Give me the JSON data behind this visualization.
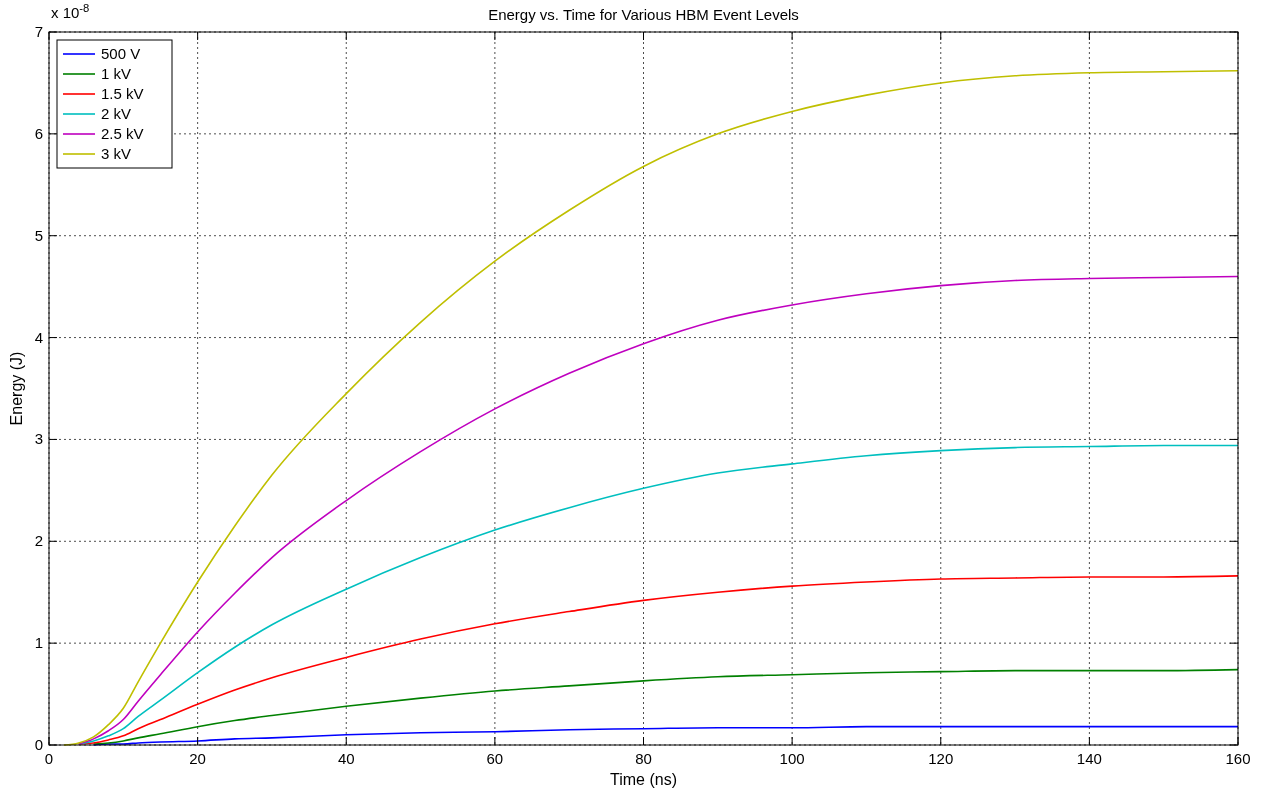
{
  "chart_data": {
    "type": "line",
    "title": "Energy vs. Time for Various HBM Event Levels",
    "xlabel": "Time (ns)",
    "ylabel": "Energy (J)",
    "annotations": [
      "x 10$^{-8}$"
    ],
    "x": [
      2,
      4,
      6,
      8,
      10,
      12,
      15,
      20,
      25,
      30,
      40,
      50,
      60,
      70,
      80,
      90,
      100,
      110,
      120,
      130,
      140,
      150,
      160
    ],
    "series": [
      {
        "name": "500 V",
        "color": "#0000ff",
        "values": [
          null,
          null,
          0.0,
          0.01,
          0.01,
          0.02,
          0.03,
          0.04,
          0.06,
          0.07,
          0.1,
          0.12,
          0.13,
          0.15,
          0.16,
          0.17,
          0.17,
          0.18,
          0.18,
          0.18,
          0.18,
          0.18,
          0.18
        ]
      },
      {
        "name": "1 kV",
        "color": "#008000",
        "values": [
          null,
          null,
          0.01,
          0.02,
          0.04,
          0.07,
          0.11,
          0.18,
          0.24,
          0.29,
          0.38,
          0.46,
          0.53,
          0.58,
          0.63,
          0.67,
          0.69,
          0.71,
          0.72,
          0.73,
          0.73,
          0.73,
          0.74
        ]
      },
      {
        "name": "1.5 kV",
        "color": "#ff0000",
        "values": [
          null,
          0.01,
          0.02,
          0.05,
          0.09,
          0.16,
          0.25,
          0.4,
          0.54,
          0.66,
          0.86,
          1.04,
          1.19,
          1.31,
          1.42,
          1.5,
          1.56,
          1.6,
          1.63,
          1.64,
          1.65,
          1.65,
          1.66
        ]
      },
      {
        "name": "2 kV",
        "color": "#00bfbf",
        "values": [
          null,
          0.01,
          0.04,
          0.09,
          0.16,
          0.28,
          0.44,
          0.71,
          0.96,
          1.18,
          1.53,
          1.84,
          2.11,
          2.33,
          2.52,
          2.67,
          2.76,
          2.84,
          2.89,
          2.92,
          2.93,
          2.94,
          2.94
        ]
      },
      {
        "name": "2.5 kV",
        "color": "#bf00bf",
        "values": [
          null,
          0.01,
          0.06,
          0.14,
          0.25,
          0.43,
          0.69,
          1.11,
          1.49,
          1.84,
          2.4,
          2.88,
          3.3,
          3.65,
          3.94,
          4.17,
          4.32,
          4.43,
          4.51,
          4.56,
          4.58,
          4.59,
          4.6
        ]
      },
      {
        "name": "3 kV",
        "color": "#bfbf00",
        "values": [
          0,
          0.02,
          0.08,
          0.2,
          0.36,
          0.62,
          1.0,
          1.6,
          2.15,
          2.65,
          3.45,
          4.15,
          4.75,
          5.25,
          5.68,
          6.0,
          6.22,
          6.38,
          6.5,
          6.57,
          6.6,
          6.61,
          6.62
        ]
      }
    ],
    "xlim": [
      0,
      160
    ],
    "xticks": [
      0,
      20,
      40,
      60,
      80,
      100,
      120,
      140,
      160
    ],
    "ylim": [
      0,
      7
    ],
    "yticks": [
      0,
      1,
      2,
      3,
      4,
      5,
      6,
      7
    ],
    "grid": true,
    "legend": "top left",
    "line_style": "solid",
    "marker": "none"
  }
}
